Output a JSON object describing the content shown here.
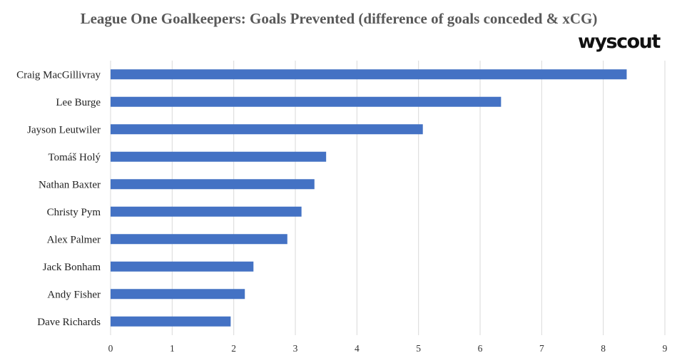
{
  "logo_text": "wyscout",
  "chart_data": {
    "type": "bar",
    "orientation": "horizontal",
    "title": "League One Goalkeepers: Goals Prevented (difference of goals conceded & xCG)",
    "categories": [
      "Craig MacGillivray",
      "Lee Burge",
      "Jayson Leutwiler",
      "Tomáš Holý",
      "Nathan Baxter",
      "Christy Pym",
      "Alex Palmer",
      "Jack Bonham",
      "Andy Fisher",
      "Dave Richards"
    ],
    "values": [
      8.38,
      6.34,
      5.07,
      3.5,
      3.31,
      3.1,
      2.87,
      2.32,
      2.18,
      1.95
    ],
    "xlim": [
      0,
      9
    ],
    "xticks": [
      "0",
      "1",
      "2",
      "3",
      "4",
      "5",
      "6",
      "7",
      "8",
      "9"
    ],
    "grid": true,
    "bar_color": "#4472C4"
  }
}
